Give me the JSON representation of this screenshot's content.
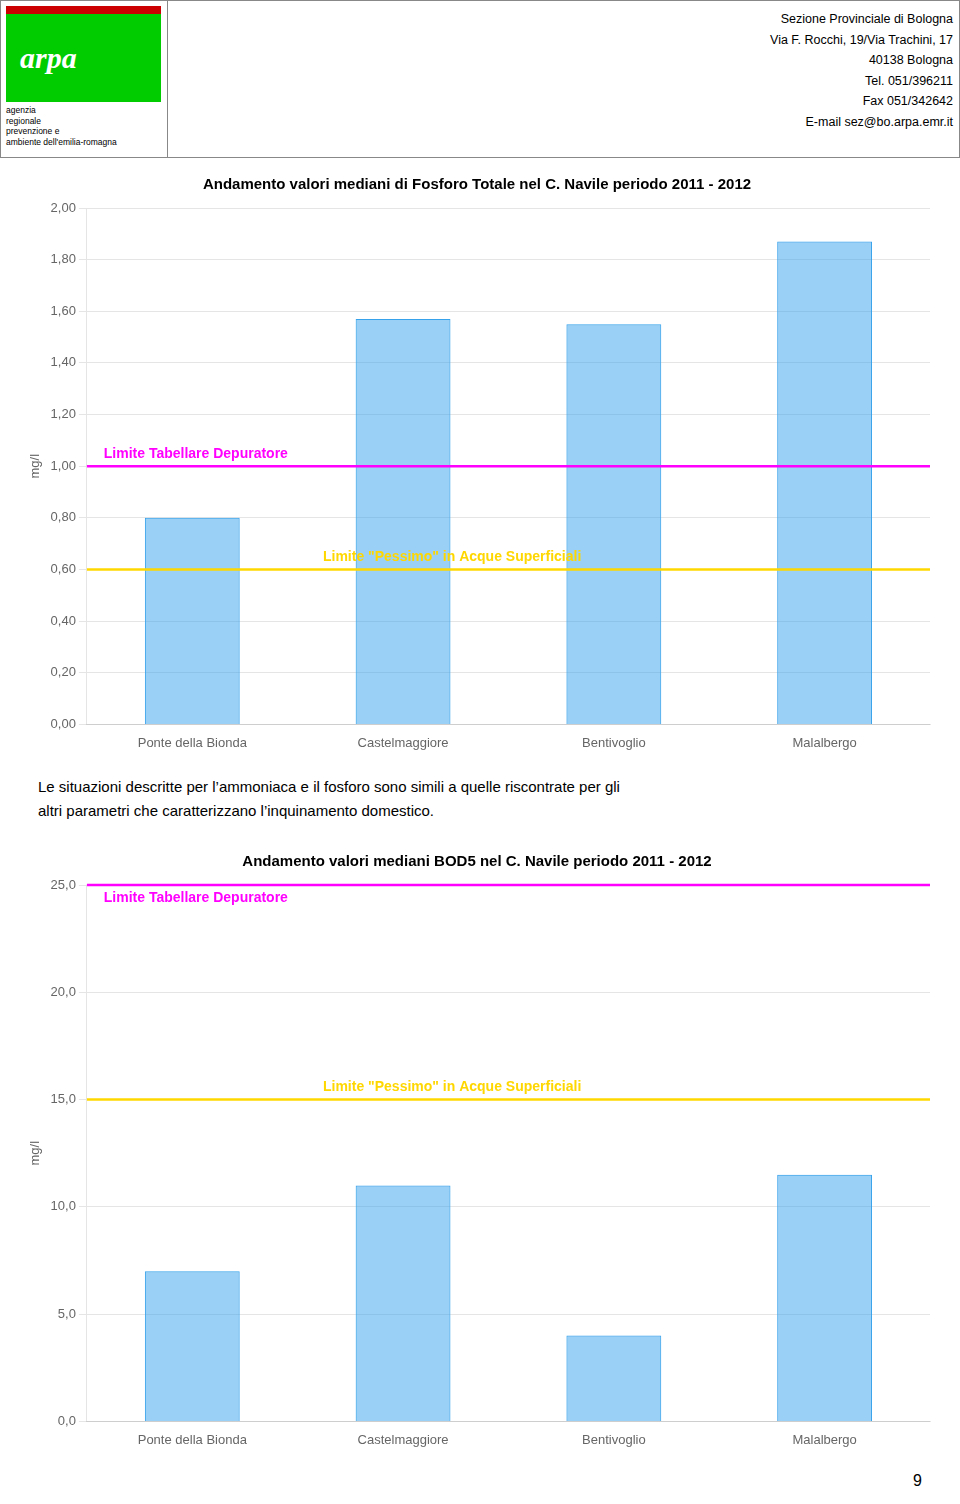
{
  "header": {
    "logo": "arpa",
    "logo_lines": [
      "agenzia",
      "regionale",
      "prevenzione e",
      "ambiente dell'emilia-romagna"
    ],
    "address_lines": [
      "Sezione Provinciale di Bologna",
      "Via F. Rocchi, 19/Via Trachini, 17",
      "40138 Bologna",
      "Tel. 051/396211",
      "Fax 051/342642",
      "E-mail sez@bo.arpa.emr.it"
    ]
  },
  "text": "Le situazioni descritte per l’ammoniaca e il fosforo sono simili a quelle riscontrate per gli\naltri parametri che caratterizzano l’inquinamento domestico.",
  "page_number": "9",
  "chart_data": [
    {
      "type": "bar",
      "title": "Andamento valori mediani di Fosforo Totale nel C. Navile periodo 2011 - 2012",
      "categories": [
        "Ponte della Bionda",
        "Castelmaggiore",
        "Bentivoglio",
        "Malalbergo"
      ],
      "values": [
        0.8,
        1.57,
        1.55,
        1.87
      ],
      "y_label": "mg/l",
      "ylim": [
        0.0,
        2.0
      ],
      "yticks": [
        {
          "value": 0.0,
          "label": "0,00"
        },
        {
          "value": 0.2,
          "label": "0,20"
        },
        {
          "value": 0.4,
          "label": "0,40"
        },
        {
          "value": 0.6,
          "label": "0,60"
        },
        {
          "value": 0.8,
          "label": "0,80"
        },
        {
          "value": 1.0,
          "label": "1,00"
        },
        {
          "value": 1.2,
          "label": "1,20"
        },
        {
          "value": 1.4,
          "label": "1,40"
        },
        {
          "value": 1.6,
          "label": "1,60"
        },
        {
          "value": 1.8,
          "label": "1,80"
        },
        {
          "value": 2.0,
          "label": "2,00"
        }
      ],
      "grid": true,
      "reference_lines": [
        {
          "value": 1.0,
          "label": "Limite Tabellare Depuratore",
          "color": "#ff00ff"
        },
        {
          "value": 0.6,
          "label": "Limite \"Pessimo\" in Acque Superficiali",
          "color": "#ffd700"
        }
      ]
    },
    {
      "type": "bar",
      "title": "Andamento valori mediani BOD5 nel C. Navile periodo 2011 - 2012",
      "categories": [
        "Ponte della Bionda",
        "Castelmaggiore",
        "Bentivoglio",
        "Malalbergo"
      ],
      "values": [
        7.0,
        11.0,
        4.0,
        11.5
      ],
      "y_label": "mg/l",
      "ylim": [
        0.0,
        25.0
      ],
      "yticks": [
        {
          "value": 0.0,
          "label": "0,0"
        },
        {
          "value": 5.0,
          "label": "5,0"
        },
        {
          "value": 10.0,
          "label": "10,0"
        },
        {
          "value": 15.0,
          "label": "15,0"
        },
        {
          "value": 20.0,
          "label": "20,0"
        },
        {
          "value": 25.0,
          "label": "25,0"
        }
      ],
      "grid": true,
      "reference_lines": [
        {
          "value": 25.0,
          "label": "Limite Tabellare Depuratore",
          "color": "#ff00ff"
        },
        {
          "value": 15.0,
          "label": "Limite \"Pessimo\" in Acque Superficiali",
          "color": "#ffd700"
        }
      ]
    }
  ]
}
